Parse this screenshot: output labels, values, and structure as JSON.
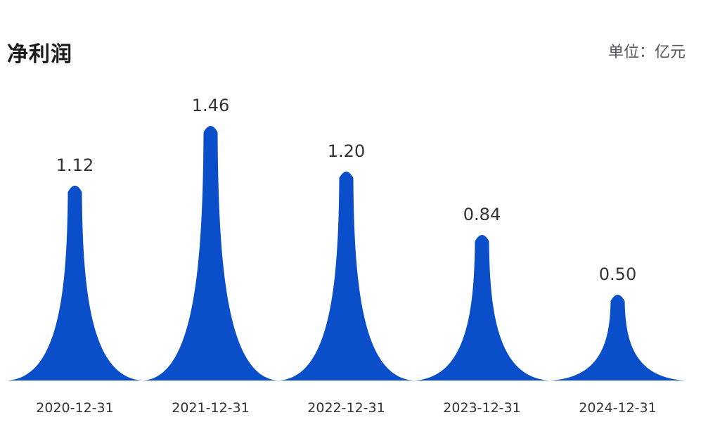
{
  "header": {
    "title": "净利润",
    "unit_label": "单位：亿元"
  },
  "chart_data": {
    "type": "bar",
    "title": "净利润",
    "unit": "亿元",
    "categories": [
      "2020-12-31",
      "2021-12-31",
      "2022-12-31",
      "2023-12-31",
      "2024-12-31"
    ],
    "values": [
      1.12,
      1.46,
      1.2,
      0.84,
      0.5
    ],
    "value_labels": [
      "1.12",
      "1.46",
      "1.20",
      "0.84",
      "0.50"
    ],
    "ylim": [
      0,
      1.6
    ],
    "grid": false,
    "bar_shape": "spike",
    "color": "#0a4fc9"
  }
}
